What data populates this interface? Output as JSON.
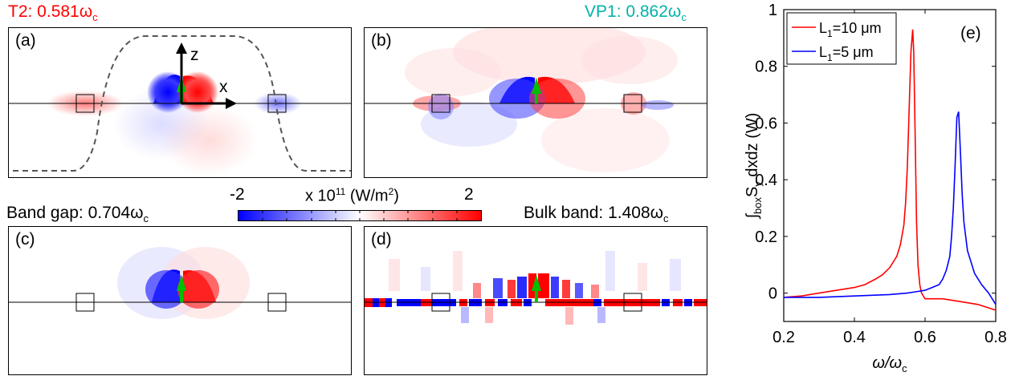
{
  "titles": {
    "t2": {
      "text": "T2: 0.581ω",
      "sub": "c"
    },
    "vp1": {
      "text": "VP1: 0.862ω",
      "sub": "c"
    },
    "bandgap": {
      "text": "Band gap: 0.704ω",
      "sub": "c"
    },
    "bulk": {
      "text": "Bulk band: 1.408ω",
      "sub": "c"
    }
  },
  "panel_labels": {
    "a": "(a)",
    "b": "(b)",
    "c": "(c)",
    "d": "(d)",
    "e": "(e)"
  },
  "axes_arrows": {
    "z": "z",
    "x": "x"
  },
  "colorbar": {
    "min_label": "-2",
    "max_label": "2",
    "unit_prefix": "x 10",
    "unit_exp": "11",
    "unit_mid": " (W/m",
    "unit_exp2": "2",
    "unit_end": ")",
    "min": -2,
    "max": 2,
    "colors": [
      "#0000ff",
      "#ffffff",
      "#ff0000"
    ]
  },
  "chart_data": {
    "type": "line",
    "xlabel": "ω/ω",
    "xlabel_sub": "c",
    "ylabel": "∫",
    "ylabel_sub": "box",
    "ylabel_mid": "S",
    "ylabel_sub2": "y",
    "ylabel_end": " dxdz (W)",
    "xlim": [
      0.2,
      0.8
    ],
    "ylim": [
      -0.1,
      1.0
    ],
    "xticks": [
      0.2,
      0.4,
      0.6,
      0.8
    ],
    "xtick_labels": [
      "0.2",
      "0.4",
      "0.6",
      "0.8"
    ],
    "yticks": [
      0,
      0.2,
      0.4,
      0.6,
      0.8,
      1
    ],
    "ytick_labels": [
      "0",
      "0.2",
      "0.4",
      "0.6",
      "0.8",
      "1"
    ],
    "legend_position": "top-left",
    "series": [
      {
        "name": "L",
        "name_sub": "1",
        "name_end": "=10 μm",
        "color": "#ff0000",
        "x": [
          0.2,
          0.25,
          0.3,
          0.35,
          0.4,
          0.43,
          0.46,
          0.48,
          0.5,
          0.52,
          0.53,
          0.54,
          0.545,
          0.55,
          0.555,
          0.56,
          0.565,
          0.568,
          0.572,
          0.576,
          0.58,
          0.585,
          0.59,
          0.6,
          0.62,
          0.65,
          0.7,
          0.75,
          0.8
        ],
        "y": [
          -0.015,
          -0.01,
          0.0,
          0.01,
          0.02,
          0.03,
          0.05,
          0.065,
          0.09,
          0.13,
          0.17,
          0.24,
          0.32,
          0.45,
          0.65,
          0.85,
          0.93,
          0.85,
          0.55,
          0.25,
          0.1,
          0.03,
          0.0,
          -0.02,
          -0.02,
          -0.02,
          -0.03,
          -0.04,
          -0.06
        ]
      },
      {
        "name": "L",
        "name_sub": "1",
        "name_end": "=5 μm",
        "color": "#0000ff",
        "x": [
          0.2,
          0.3,
          0.4,
          0.5,
          0.55,
          0.6,
          0.62,
          0.64,
          0.65,
          0.66,
          0.67,
          0.675,
          0.68,
          0.685,
          0.69,
          0.695,
          0.7,
          0.705,
          0.71,
          0.72,
          0.74,
          0.76,
          0.78,
          0.8
        ],
        "y": [
          -0.015,
          -0.015,
          -0.01,
          -0.005,
          0.0,
          0.01,
          0.02,
          0.03,
          0.05,
          0.08,
          0.13,
          0.2,
          0.3,
          0.45,
          0.62,
          0.64,
          0.5,
          0.35,
          0.25,
          0.15,
          0.07,
          0.03,
          0.0,
          -0.04
        ]
      }
    ]
  }
}
